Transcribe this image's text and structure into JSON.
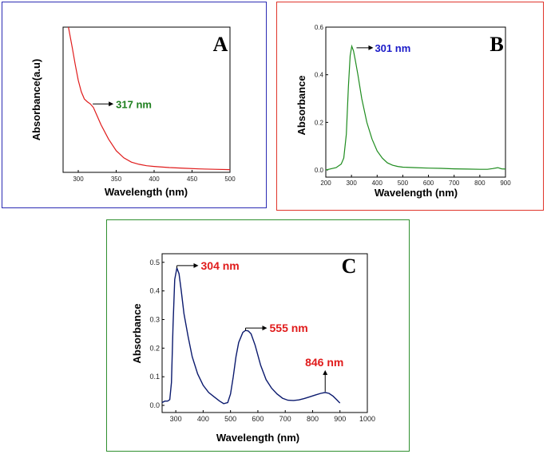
{
  "chart_data": [
    {
      "panel": "A",
      "type": "line",
      "xlabel": "Wavelength (nm)",
      "ylabel": "Absorbance(a.u)",
      "xlim": [
        280,
        500
      ],
      "xticks": [
        300,
        350,
        400,
        450,
        500
      ],
      "yticks_shown": false,
      "color": "#e01b1b",
      "x": [
        287,
        292,
        296,
        300,
        304,
        308,
        312,
        316,
        320,
        325,
        330,
        340,
        350,
        360,
        370,
        380,
        390,
        400,
        420,
        440,
        460,
        480,
        500
      ],
      "y": [
        1.0,
        0.86,
        0.74,
        0.63,
        0.55,
        0.5,
        0.48,
        0.465,
        0.44,
        0.38,
        0.32,
        0.22,
        0.14,
        0.09,
        0.06,
        0.045,
        0.035,
        0.03,
        0.022,
        0.017,
        0.013,
        0.01,
        0.008
      ],
      "annotation": {
        "label": "317 nm",
        "x": 317,
        "y": 0.465,
        "color": "#1e7f1e"
      }
    },
    {
      "panel": "B",
      "type": "line",
      "xlabel": "Wavelength (nm)",
      "ylabel": "Absorbance",
      "xlim": [
        200,
        900
      ],
      "ylim": [
        -0.03,
        0.6
      ],
      "xticks": [
        200,
        300,
        400,
        500,
        600,
        700,
        800,
        900
      ],
      "yticks": [
        0.0,
        0.2,
        0.4,
        0.6
      ],
      "ytick_labels": [
        "0.0",
        "0.2",
        "0.4",
        "0.6"
      ],
      "color": "#1e8c1e",
      "x": [
        200,
        220,
        240,
        260,
        270,
        280,
        288,
        295,
        301,
        308,
        315,
        325,
        340,
        360,
        380,
        400,
        420,
        440,
        460,
        480,
        500,
        550,
        600,
        650,
        700,
        750,
        800,
        830,
        850,
        870,
        885,
        900
      ],
      "y": [
        0.0,
        0.005,
        0.01,
        0.025,
        0.05,
        0.15,
        0.35,
        0.48,
        0.52,
        0.5,
        0.46,
        0.4,
        0.3,
        0.2,
        0.13,
        0.08,
        0.05,
        0.03,
        0.02,
        0.015,
        0.012,
        0.01,
        0.008,
        0.007,
        0.005,
        0.004,
        0.003,
        0.003,
        0.006,
        0.01,
        0.005,
        0.004
      ],
      "annotation": {
        "label": "301 nm",
        "x": 301,
        "y": 0.52,
        "color": "#1a1ac8"
      }
    },
    {
      "panel": "C",
      "type": "line",
      "xlabel": "Wavelength (nm)",
      "ylabel": "Absorbance",
      "xlim": [
        250,
        1000
      ],
      "ylim": [
        -0.025,
        0.53
      ],
      "xticks": [
        300,
        400,
        500,
        600,
        700,
        800,
        900,
        1000
      ],
      "yticks": [
        0.0,
        0.1,
        0.2,
        0.3,
        0.4,
        0.5
      ],
      "ytick_labels": [
        "0.0",
        "0.1",
        "0.2",
        "0.3",
        "0.4",
        "0.5"
      ],
      "color": "#0b1a6e",
      "x": [
        250,
        260,
        270,
        278,
        284,
        290,
        296,
        304,
        312,
        320,
        330,
        345,
        360,
        380,
        400,
        420,
        440,
        460,
        475,
        490,
        500,
        510,
        520,
        530,
        545,
        555,
        565,
        575,
        590,
        610,
        630,
        650,
        670,
        690,
        710,
        730,
        750,
        770,
        790,
        810,
        830,
        846,
        860,
        875,
        890,
        900
      ],
      "y": [
        0.01,
        0.015,
        0.015,
        0.02,
        0.08,
        0.28,
        0.44,
        0.48,
        0.46,
        0.4,
        0.32,
        0.24,
        0.17,
        0.11,
        0.07,
        0.045,
        0.03,
        0.015,
        0.006,
        0.01,
        0.04,
        0.1,
        0.17,
        0.22,
        0.255,
        0.262,
        0.26,
        0.25,
        0.21,
        0.14,
        0.09,
        0.06,
        0.04,
        0.025,
        0.018,
        0.017,
        0.019,
        0.024,
        0.03,
        0.036,
        0.042,
        0.045,
        0.042,
        0.032,
        0.018,
        0.008
      ],
      "annotations": [
        {
          "label": "304 nm",
          "x": 304,
          "y": 0.48,
          "color": "#e01b1b"
        },
        {
          "label": "555 nm",
          "x": 555,
          "y": 0.262,
          "color": "#e01b1b"
        },
        {
          "label": "846 nm",
          "x": 846,
          "y": 0.045,
          "color": "#e01b1b"
        }
      ]
    }
  ],
  "panel_labels": {
    "a": "A",
    "b": "B",
    "c": "C"
  }
}
